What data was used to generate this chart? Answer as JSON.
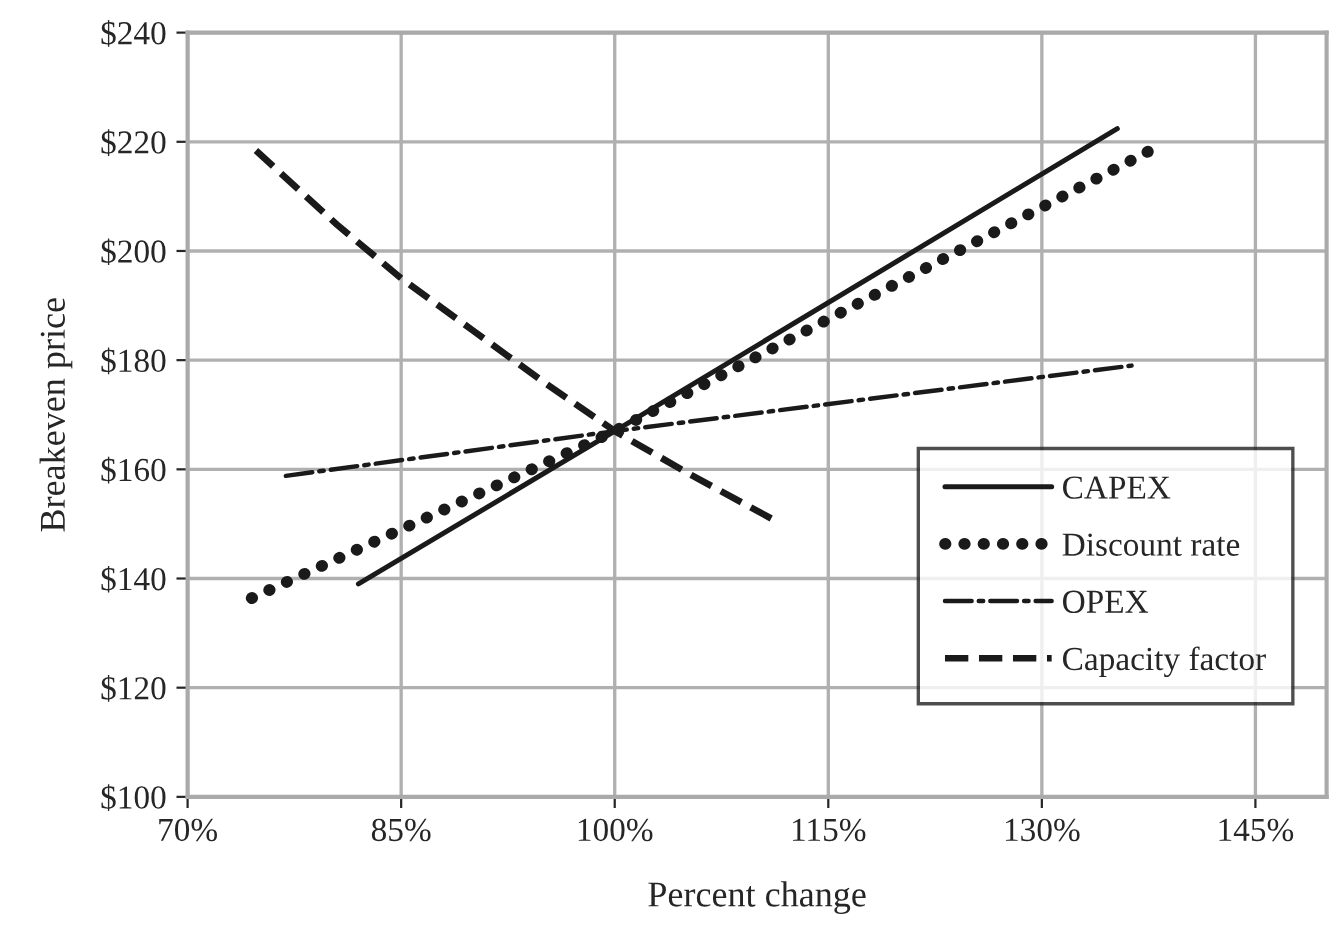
{
  "chart_data": {
    "type": "line",
    "xlabel": "Percent change",
    "ylabel": "Breakeven price",
    "xlim": [
      70,
      150
    ],
    "ylim": [
      100,
      240
    ],
    "xticks": [
      {
        "value": 70,
        "label": "70%"
      },
      {
        "value": 85,
        "label": "85%"
      },
      {
        "value": 100,
        "label": "100%"
      },
      {
        "value": 115,
        "label": "115%"
      },
      {
        "value": 130,
        "label": "130%"
      },
      {
        "value": 145,
        "label": "145%"
      }
    ],
    "yticks": [
      {
        "value": 100,
        "label": "$100"
      },
      {
        "value": 120,
        "label": "$120"
      },
      {
        "value": 140,
        "label": "$140"
      },
      {
        "value": 160,
        "label": "$160"
      },
      {
        "value": 180,
        "label": "$180"
      },
      {
        "value": 200,
        "label": "$200"
      },
      {
        "value": 220,
        "label": "$220"
      },
      {
        "value": 240,
        "label": "$240"
      }
    ],
    "grid": true,
    "legend": "bottom right",
    "series": [
      {
        "name": "CAPEX",
        "color": "#1a1a1a",
        "line_style": "solid",
        "x": [
          82,
          100,
          135.3
        ],
        "values": [
          139,
          167,
          222.4
        ]
      },
      {
        "name": "Discount rate",
        "color": "#1a1a1a",
        "line_style": "dotted",
        "x": [
          74.5,
          100,
          137.6
        ],
        "values": [
          136.4,
          167,
          218.4
        ]
      },
      {
        "name": "OPEX",
        "color": "#1a1a1a",
        "line_style": "dashdot",
        "x": [
          76.9,
          100,
          136.3
        ],
        "values": [
          158.8,
          167,
          179
        ]
      },
      {
        "name": "Capacity factor",
        "color": "#1a1a1a",
        "line_style": "dashed",
        "x": [
          74.8,
          80.5,
          85,
          90,
          95,
          100,
          105,
          111.2
        ],
        "values": [
          218.4,
          204.8,
          195,
          185.5,
          176,
          167,
          159.5,
          150.7
        ]
      }
    ]
  }
}
